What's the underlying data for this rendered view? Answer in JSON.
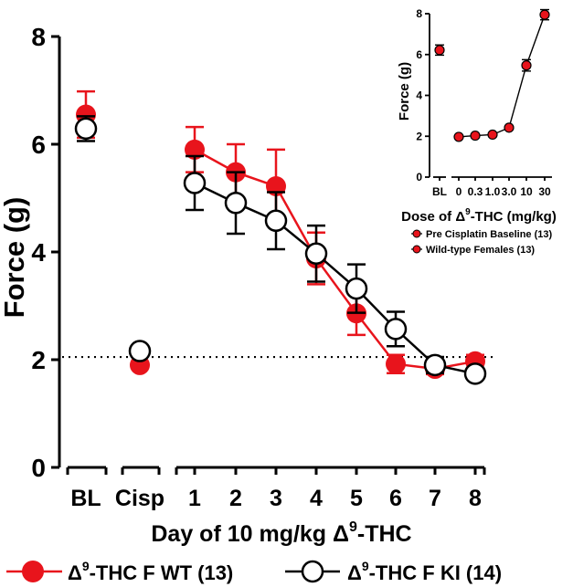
{
  "chart_data": [
    {
      "type": "line",
      "xlabel_main": "Day of 10 mg/kg Δ",
      "xlabel_sup": "9",
      "xlabel_tail": "-THC",
      "ylabel": "Force (g)",
      "ylim": [
        0,
        8
      ],
      "yticks": [
        "0",
        "2",
        "4",
        "6",
        "8"
      ],
      "categories": [
        "BL",
        "Cisp",
        "1",
        "2",
        "3",
        "4",
        "5",
        "6",
        "7",
        "8"
      ],
      "reference_line": 2.05,
      "legend_position": "bottom",
      "colors": {
        "wt": "#e8141c",
        "ki": "#000000",
        "ki_fill": "#ffffff"
      },
      "series": [
        {
          "name_prefix": "Δ",
          "name_sup": "9",
          "name_suffix": "-THC F WT (13)",
          "values": [
            6.55,
            1.9,
            5.9,
            5.48,
            5.22,
            3.88,
            2.86,
            1.92,
            1.83,
            1.97
          ],
          "errors": [
            0.43,
            0,
            0.42,
            0.52,
            0.68,
            0.48,
            0.4,
            0.17,
            0.1,
            0.12
          ]
        },
        {
          "name_prefix": "Δ",
          "name_sup": "9",
          "name_suffix": "-THC F KI (14)",
          "values": [
            6.29,
            2.16,
            5.28,
            4.91,
            4.58,
            3.97,
            3.32,
            2.57,
            1.9,
            1.74
          ],
          "errors": [
            0.23,
            0,
            0.5,
            0.57,
            0.53,
            0.52,
            0.45,
            0.32,
            0.15,
            0.1
          ]
        }
      ]
    },
    {
      "type": "line",
      "xlabel_main": "Dose of Δ",
      "xlabel_sup": "9",
      "xlabel_tail": "-THC (mg/kg)",
      "ylabel": "Force (g)",
      "ylim": [
        0,
        8
      ],
      "yticks": [
        "0",
        "2",
        "4",
        "6",
        "8"
      ],
      "categories": [
        "BL",
        "0",
        "0.3",
        "1.0",
        "3.0",
        "10",
        "30"
      ],
      "legend_position": "bottom",
      "series": [
        {
          "name": "Pre Cisplatin Baseline (13)",
          "values": [
            6.22,
            null,
            null,
            null,
            null,
            null,
            null
          ],
          "errors": [
            0.25,
            0,
            0,
            0,
            0,
            0,
            0
          ]
        },
        {
          "name": "Wild-type Females (13)",
          "values": [
            null,
            1.97,
            2.03,
            2.08,
            2.42,
            5.47,
            7.95
          ],
          "errors": [
            0,
            0.05,
            0.05,
            0.06,
            0.08,
            0.28,
            0.25
          ]
        }
      ]
    }
  ]
}
